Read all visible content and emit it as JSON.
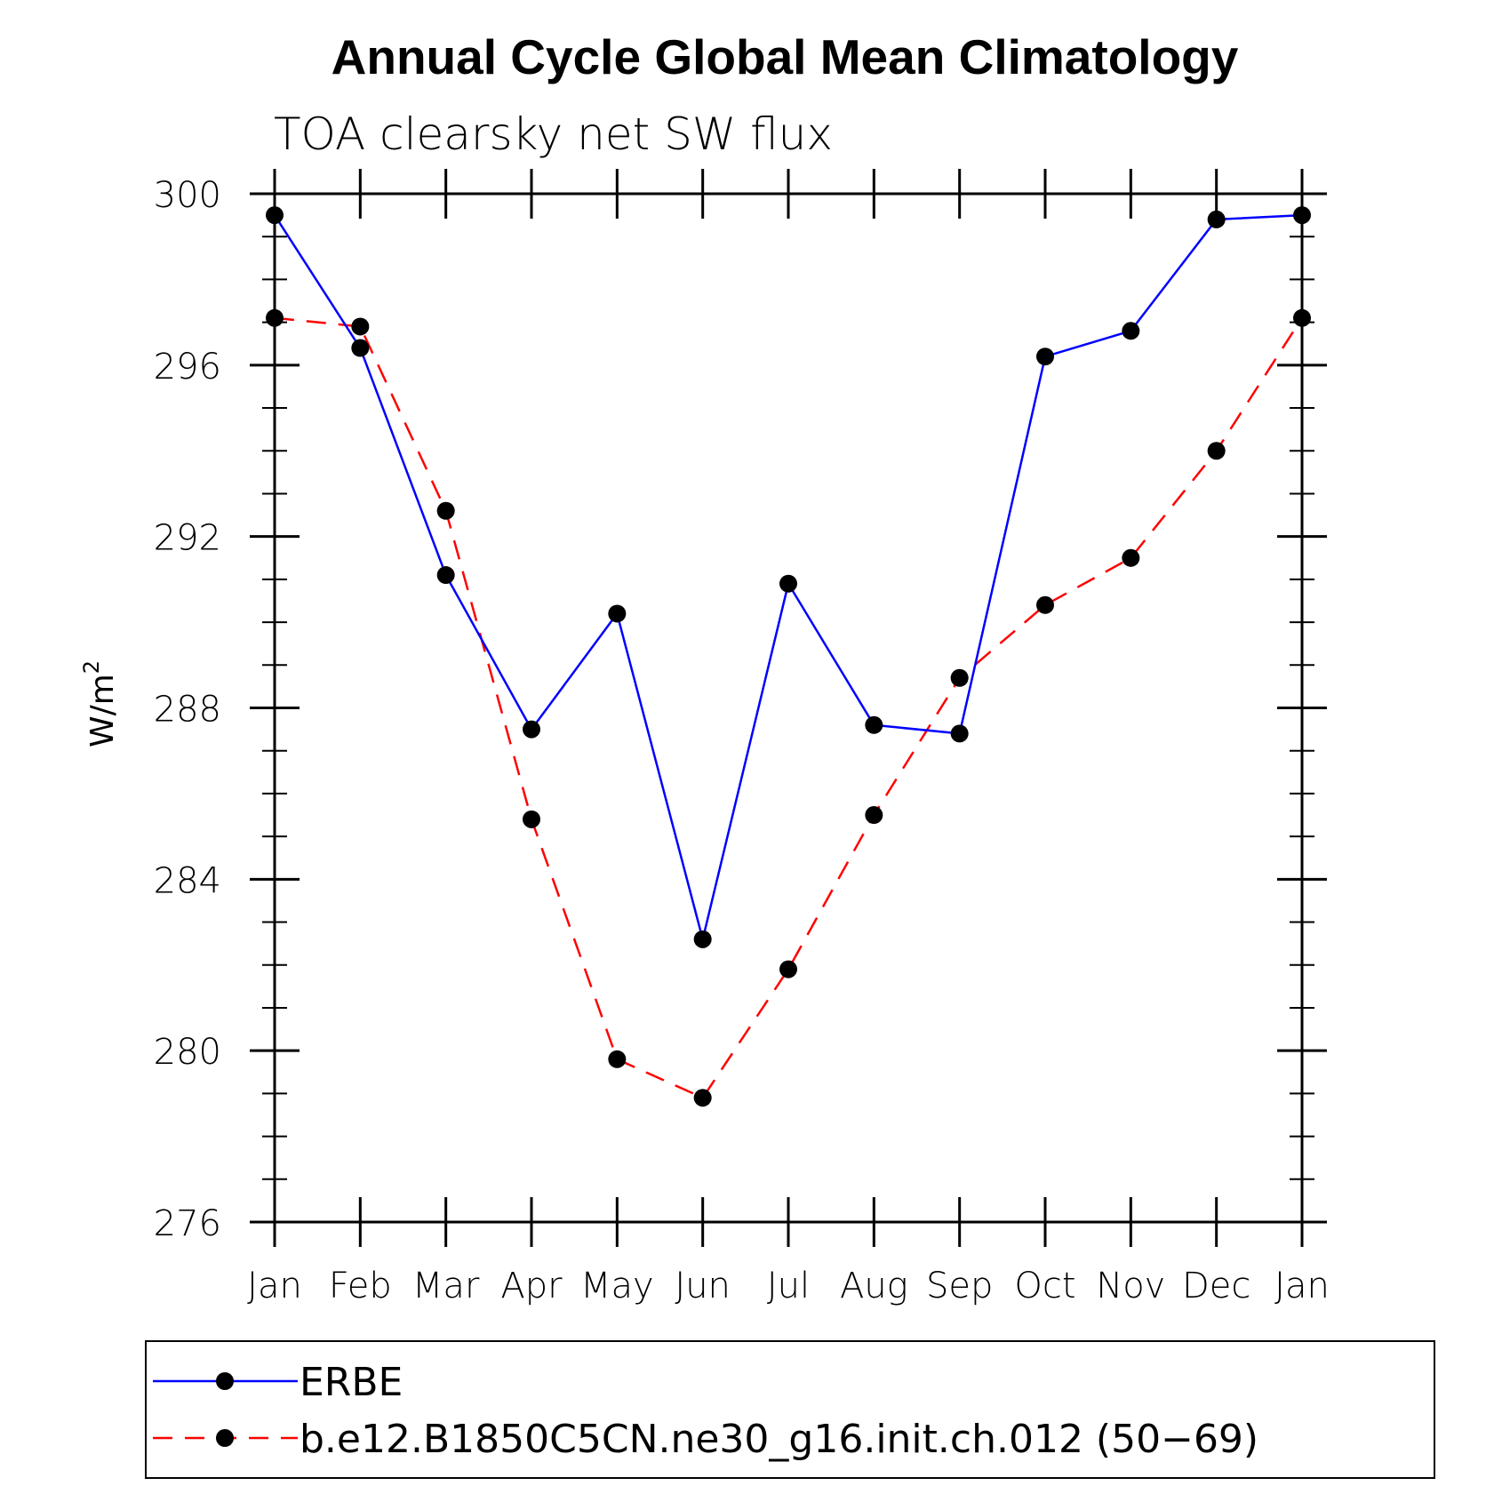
{
  "chart_data": {
    "type": "line",
    "title": "Annual Cycle Global Mean Climatology",
    "subtitle": "TOA clearsky net SW flux",
    "xlabel": "",
    "ylabel": "W/m",
    "ylabel_sup": "2",
    "categories": [
      "Jan",
      "Feb",
      "Mar",
      "Apr",
      "May",
      "Jun",
      "Jul",
      "Aug",
      "Sep",
      "Oct",
      "Nov",
      "Dec",
      "Jan"
    ],
    "ylim": [
      276,
      300
    ],
    "yticks": [
      276,
      280,
      284,
      288,
      292,
      296,
      300
    ],
    "series": [
      {
        "name": "ERBE",
        "color": "#0000ff",
        "dash": "solid",
        "values": [
          299.5,
          296.4,
          291.1,
          287.5,
          290.2,
          282.6,
          290.9,
          287.6,
          287.4,
          296.2,
          296.8,
          299.4,
          299.5
        ]
      },
      {
        "name": "b.e12.B1850C5CN.ne30_g16.init.ch.012 (50−69)",
        "color": "#ff0000",
        "dash": "dashed",
        "values": [
          297.1,
          296.9,
          292.6,
          285.4,
          279.8,
          278.9,
          281.9,
          285.5,
          288.7,
          290.4,
          291.5,
          294.0,
          297.1
        ]
      }
    ],
    "grid": false,
    "legend_position": "bottom"
  }
}
